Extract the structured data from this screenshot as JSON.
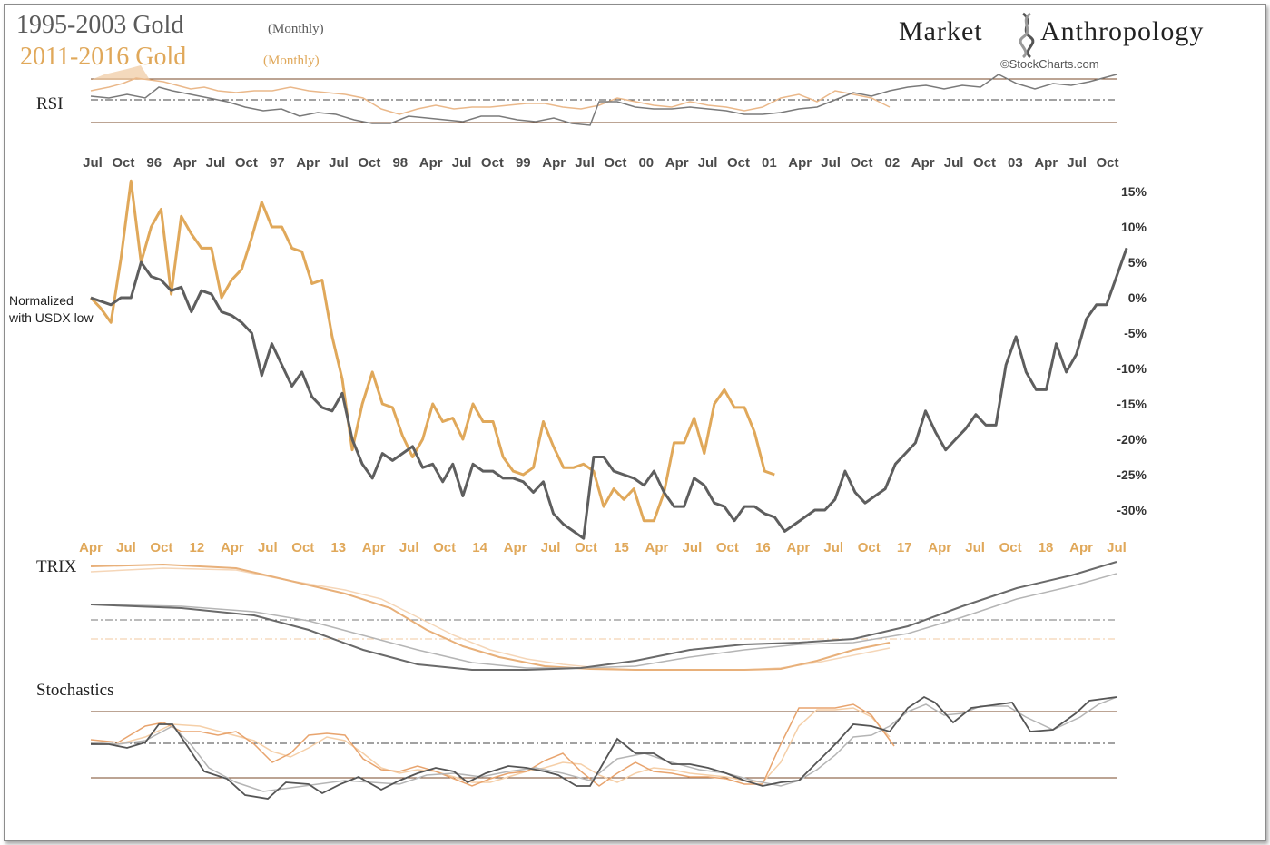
{
  "legend": {
    "series1_label": "1995-2003 Gold",
    "series1_sub": "(Monthly)",
    "series2_label": "2011-2016  Gold",
    "series2_sub": "(Monthly)"
  },
  "brand": {
    "title_left": "Market",
    "title_right": "Anthropology",
    "credit": "©StockCharts.com"
  },
  "colors": {
    "series1": "#5e5e5e",
    "series2": "#e0a85a",
    "band_line": "#7a4a2a",
    "series1_light": "#a8a8a8",
    "series2_light": "#f0c9a0"
  },
  "panels": {
    "rsi": "RSI",
    "trix": "TRIX",
    "stochastics": "Stochastics"
  },
  "annotation": {
    "line1": "Normalized",
    "line2": "with USDX low"
  },
  "chart_data": {
    "type": "line",
    "top_axis_labels": [
      "Jul",
      "Oct",
      "96",
      "Apr",
      "Jul",
      "Oct",
      "97",
      "Apr",
      "Jul",
      "Oct",
      "98",
      "Apr",
      "Jul",
      "Oct",
      "99",
      "Apr",
      "Jul",
      "Oct",
      "00",
      "Apr",
      "Jul",
      "Oct",
      "01",
      "Apr",
      "Jul",
      "Oct",
      "02",
      "Apr",
      "Jul",
      "Oct",
      "03",
      "Apr",
      "Jul",
      "Oct"
    ],
    "bottom_axis_labels": [
      "Apr",
      "Jul",
      "Oct",
      "12",
      "Apr",
      "Jul",
      "Oct",
      "13",
      "Apr",
      "Jul",
      "Oct",
      "14",
      "Apr",
      "Jul",
      "Oct",
      "15",
      "Apr",
      "Jul",
      "Oct",
      "16",
      "Apr",
      "Jul",
      "Oct",
      "17",
      "Apr",
      "Jul",
      "Oct",
      "18",
      "Apr",
      "Jul"
    ],
    "y_ticks": [
      "15%",
      "10%",
      "5%",
      "0%",
      "-5%",
      "-10%",
      "-15%",
      "-20%",
      "-25%",
      "-30%"
    ],
    "ylim": [
      -30,
      15
    ],
    "series": [
      {
        "name": "1995-2003 Gold",
        "values": [
          0,
          -0.5,
          -1,
          0,
          0,
          5,
          3,
          2.5,
          1,
          1.5,
          -2,
          1,
          0.5,
          -2,
          -2.5,
          -3.5,
          -5,
          -11,
          -6.5,
          -9.5,
          -12.5,
          -10.5,
          -14,
          -15.5,
          -16,
          -13.5,
          -20,
          -23.5,
          -25.5,
          -22,
          -23,
          -22,
          -21,
          -24,
          -23.5,
          -26,
          -23.5,
          -28,
          -23.5,
          -24.5,
          -24.5,
          -25.5,
          -25.5,
          -26,
          -27.5,
          -26,
          -30.5,
          -32,
          -33,
          -34,
          -22.5,
          -22.5,
          -24.5,
          -25,
          -25.5,
          -26.5,
          -24.5,
          -27.5,
          -29.5,
          -29.5,
          -25.5,
          -26.5,
          -29,
          -29.5,
          -31.5,
          -29.5,
          -29.5,
          -30.5,
          -31,
          -33,
          -32,
          -31,
          -30,
          -30,
          -28.5,
          -24.5,
          -27.5,
          -29,
          -28,
          -27,
          -23.5,
          -22,
          -20.5,
          -16,
          -19,
          -21.5,
          -20,
          -18.5,
          -16.5,
          -18,
          -18,
          -9.5,
          -5.5,
          -10.5,
          -13,
          -13,
          -6.5,
          -10.5,
          -8,
          -3,
          -1,
          -1,
          3,
          7
        ]
      },
      {
        "name": "2011-2016 Gold",
        "values": [
          0,
          -1.5,
          -3.5,
          5.5,
          16.5,
          5,
          10,
          12.5,
          0.5,
          11.5,
          9,
          7,
          7,
          0,
          2.5,
          4,
          8.5,
          13.5,
          10,
          10,
          7,
          6.5,
          2,
          2.5,
          -5.5,
          -11.5,
          -21.5,
          -15,
          -10.5,
          -15,
          -15.5,
          -19.5,
          -22.5,
          -20,
          -15,
          -17.5,
          -17,
          -20,
          -15,
          -17.5,
          -17.5,
          -22.5,
          -24.5,
          -25,
          -24,
          -17.5,
          -21,
          -24,
          -24,
          -23.5,
          -24.5,
          -29.5,
          -27,
          -28.5,
          -27,
          -31.5,
          -31.5,
          -27.5,
          -20.5,
          -20.5,
          -17,
          -22,
          -15,
          -13,
          -15.5,
          -15.5,
          -19,
          -24.5,
          -25
        ]
      }
    ]
  }
}
